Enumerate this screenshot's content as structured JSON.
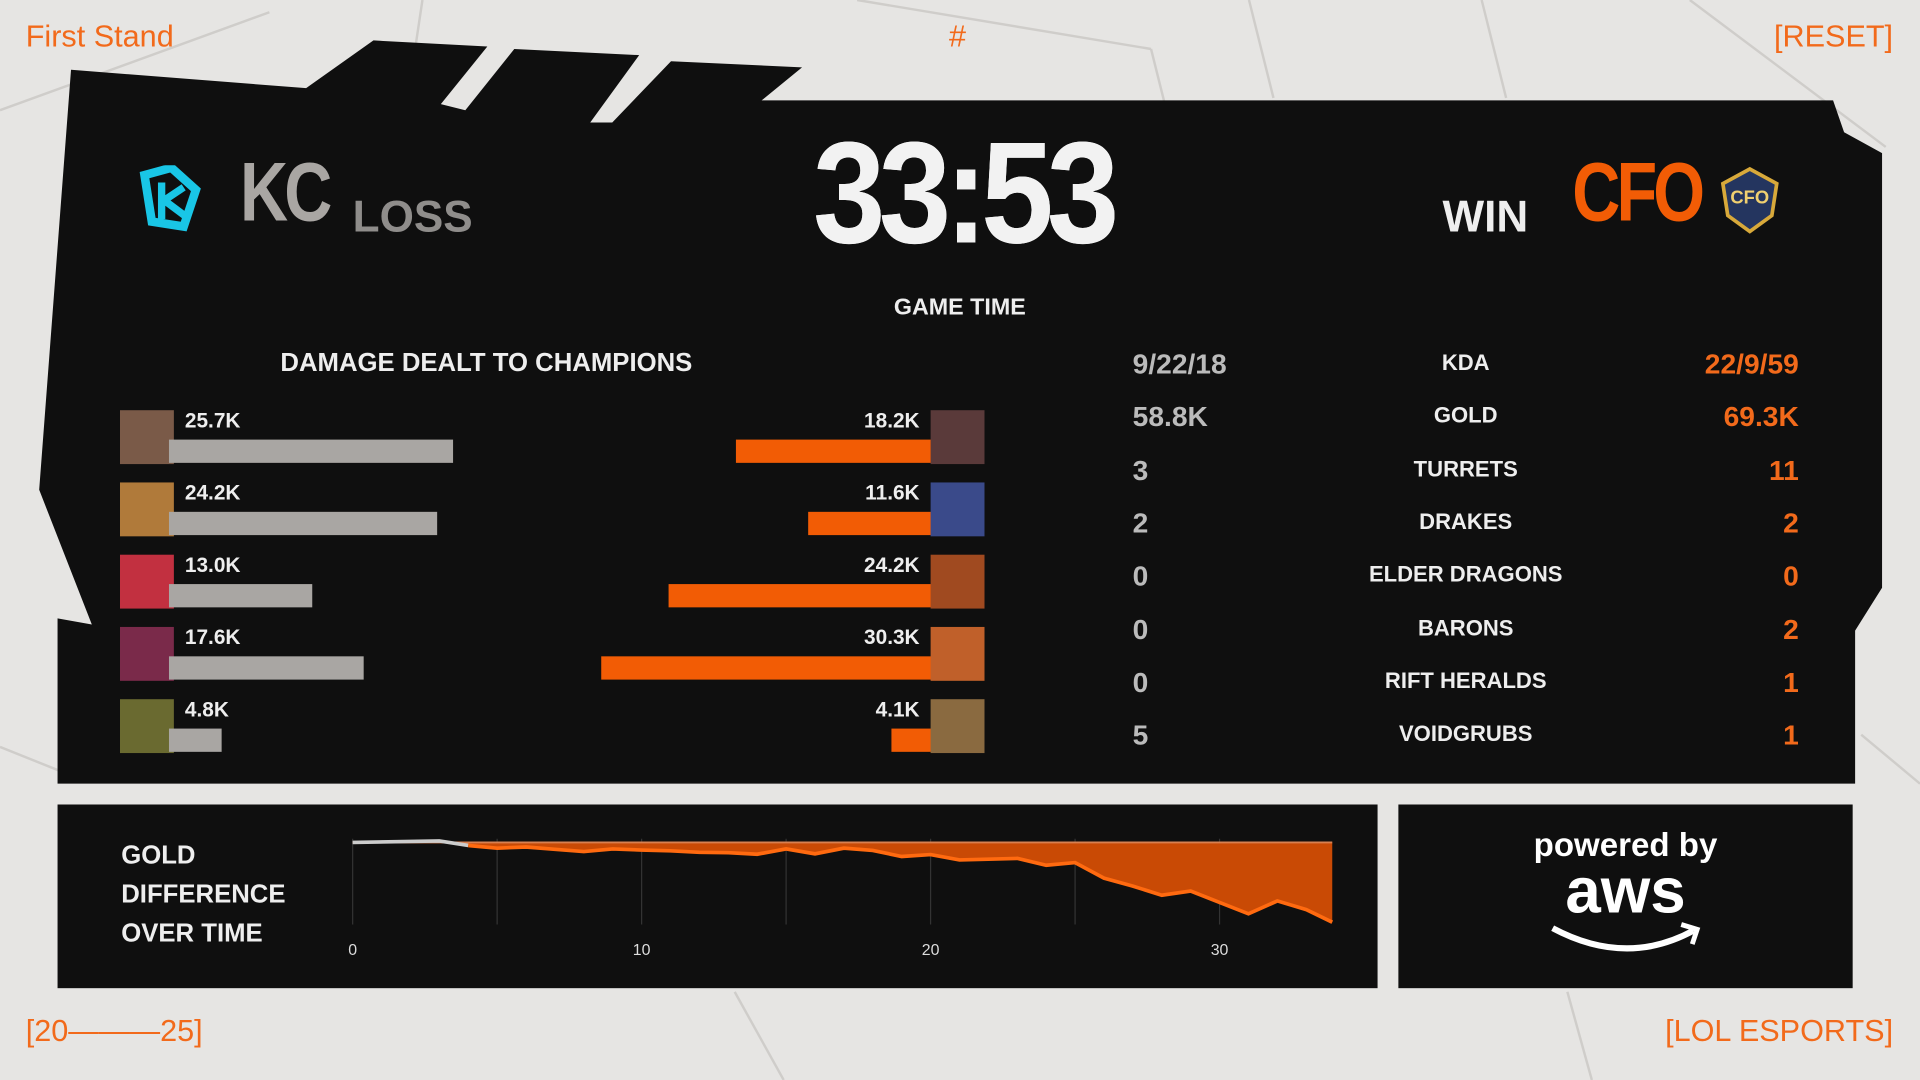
{
  "header": {
    "event": "First Stand",
    "hash": "#",
    "reset": "[RESET]",
    "year_range": "[20———25]",
    "brand": "[LOL ESPORTS]"
  },
  "colors": {
    "accent": "#f26a1b",
    "blue_team": "#a9a6a3",
    "red_team": "#f25c05",
    "kc_logo": "#19c6e6"
  },
  "match": {
    "game_time": "33:53",
    "game_time_label": "GAME TIME",
    "left_team": {
      "name": "KC",
      "result": "LOSS",
      "logo_icon": "kc-logo"
    },
    "right_team": {
      "name": "CFO",
      "result": "WIN",
      "logo_icon": "cfo-logo"
    }
  },
  "damage": {
    "title": "DAMAGE DEALT TO CHAMPIONS",
    "left": [
      {
        "label": "25.7K",
        "value": 25.7,
        "color": "#7a5a48"
      },
      {
        "label": "24.2K",
        "value": 24.2,
        "color": "#b07a3a"
      },
      {
        "label": "13.0K",
        "value": 13.0,
        "color": "#c23040"
      },
      {
        "label": "17.6K",
        "value": 17.6,
        "color": "#7a2a4a"
      },
      {
        "label": "4.8K",
        "value": 4.8,
        "color": "#6a6a30"
      }
    ],
    "right": [
      {
        "label": "18.2K",
        "value": 18.2,
        "color": "#5a3a3a"
      },
      {
        "label": "11.6K",
        "value": 11.6,
        "color": "#3a4a8a"
      },
      {
        "label": "24.2K",
        "value": 24.2,
        "color": "#a04a20"
      },
      {
        "label": "30.3K",
        "value": 30.3,
        "color": "#c0602a"
      },
      {
        "label": "4.1K",
        "value": 4.1,
        "color": "#8a6a40"
      }
    ]
  },
  "stats": [
    {
      "label": "KDA",
      "left": "9/22/18",
      "right": "22/9/59"
    },
    {
      "label": "GOLD",
      "left": "58.8K",
      "right": "69.3K"
    },
    {
      "label": "TURRETS",
      "left": "3",
      "right": "11"
    },
    {
      "label": "DRAKES",
      "left": "2",
      "right": "2"
    },
    {
      "label": "ELDER DRAGONS",
      "left": "0",
      "right": "0"
    },
    {
      "label": "BARONS",
      "left": "0",
      "right": "2"
    },
    {
      "label": "RIFT HERALDS",
      "left": "0",
      "right": "1"
    },
    {
      "label": "VOIDGRUBS",
      "left": "5",
      "right": "1"
    }
  ],
  "gold_chart": {
    "title_lines": [
      "GOLD",
      "DIFFERENCE",
      "OVER TIME"
    ]
  },
  "chart_data": {
    "type": "area",
    "xticks": [
      0,
      10,
      20,
      30
    ],
    "xlim": [
      0,
      33.9
    ],
    "x": [
      0,
      3,
      4,
      5,
      6,
      7,
      8,
      9,
      10,
      11,
      12,
      13,
      14,
      15,
      16,
      17,
      18,
      19,
      20,
      21,
      22,
      23,
      24,
      25,
      26,
      27,
      28,
      29,
      30,
      31,
      32,
      33,
      33.9
    ],
    "y": [
      0,
      0.2,
      -0.4,
      -0.75,
      -0.6,
      -0.9,
      -1.2,
      -0.85,
      -1.0,
      -1.1,
      -1.3,
      -1.35,
      -1.55,
      -0.85,
      -1.5,
      -0.75,
      -1.05,
      -1.85,
      -1.6,
      -2.3,
      -2.2,
      -2.1,
      -3.0,
      -2.65,
      -4.7,
      -5.75,
      -6.95,
      -6.4,
      -7.9,
      -9.4,
      -7.7,
      -8.85,
      -10.5
    ],
    "grid": "vertical"
  },
  "sponsor": {
    "line1": "powered by",
    "line2": "aws"
  }
}
